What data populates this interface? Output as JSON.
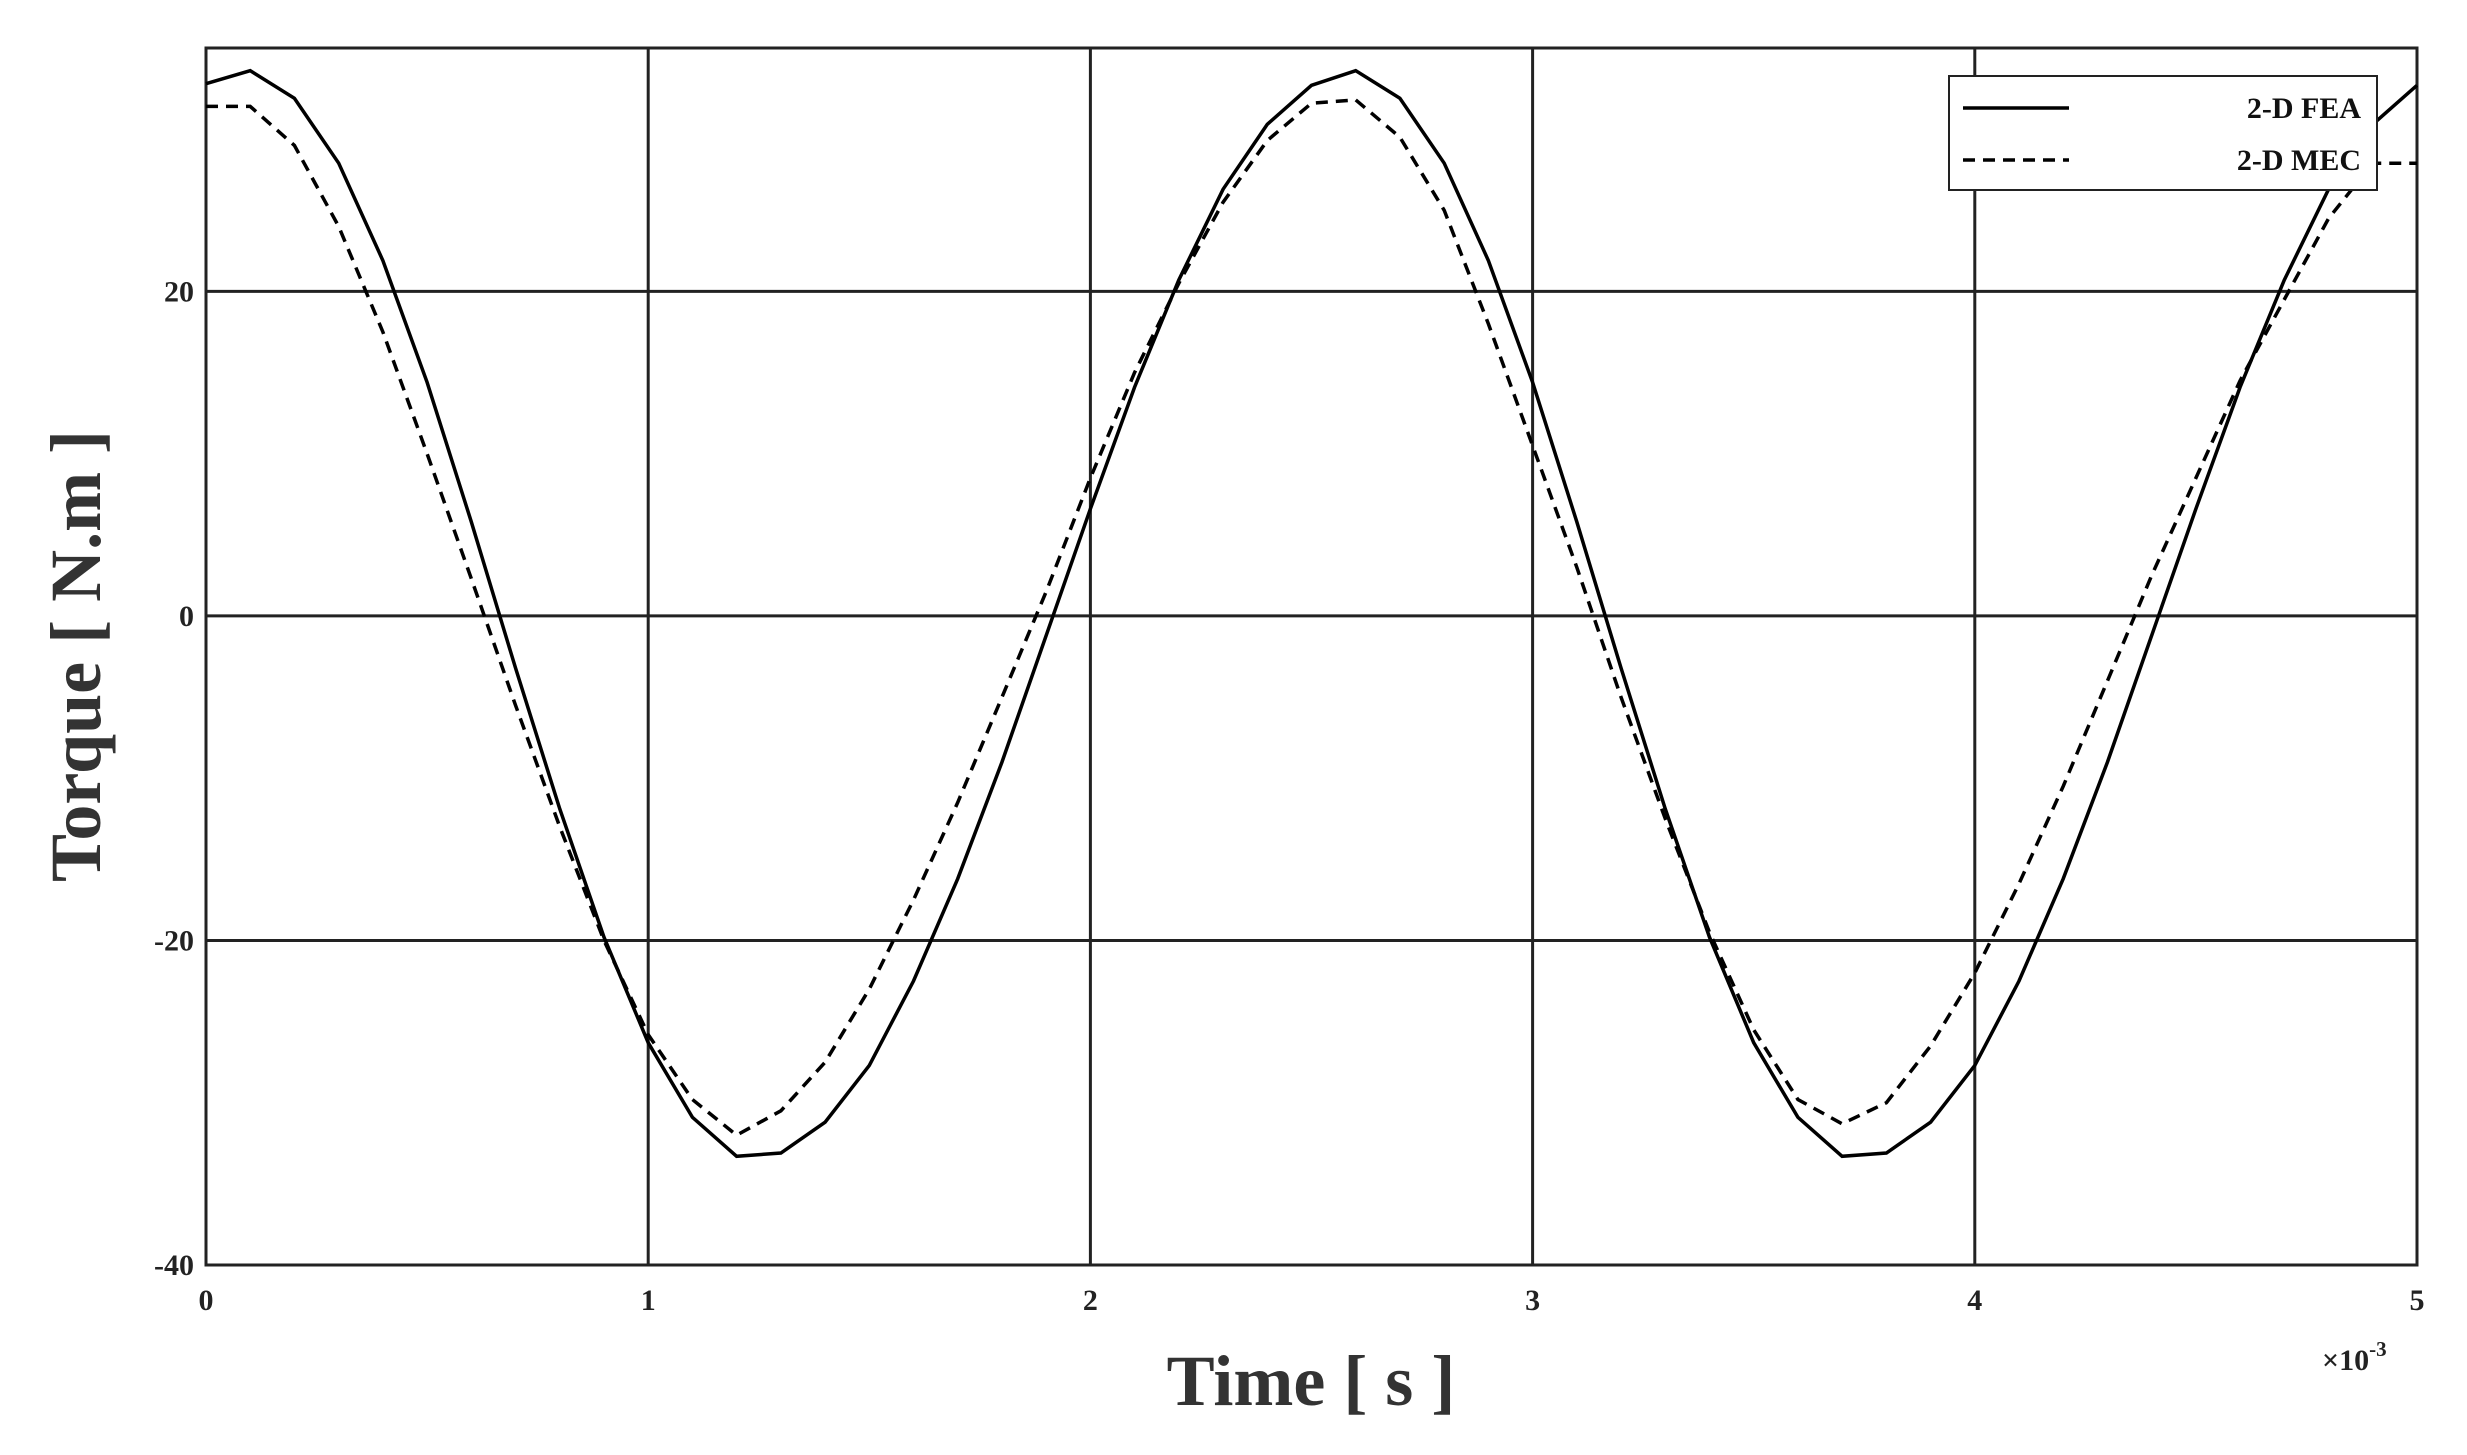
{
  "chart_data": {
    "type": "line",
    "x_label": "Time [ s ]",
    "y_label": "Torque [ N.m ]",
    "x_scale_label": "×10",
    "x_scale_exponent": "-3",
    "xlim": [
      0,
      5
    ],
    "xticks": [
      0,
      1,
      2,
      3,
      4,
      5
    ],
    "ylim": [
      -40,
      35
    ],
    "yticks": [
      -40,
      -20,
      0,
      20
    ],
    "grid": true,
    "legend": "top-right",
    "x": [
      0,
      0.1,
      0.2,
      0.3,
      0.4,
      0.5,
      0.6,
      0.7,
      0.8,
      0.9,
      1,
      1.1,
      1.2,
      1.3,
      1.4,
      1.5,
      1.6,
      1.7,
      1.8,
      1.9,
      2,
      2.1,
      2.2,
      2.3,
      2.4,
      2.5,
      2.6,
      2.7,
      2.8,
      2.9,
      3,
      3.1,
      3.2,
      3.3,
      3.4,
      3.5,
      3.6,
      3.7,
      3.8,
      3.9,
      4,
      4.1,
      4.2,
      4.3,
      4.4,
      4.5,
      4.6,
      4.7,
      4.8,
      4.9,
      5
    ],
    "series": [
      {
        "name": "2-D FEA",
        "color": "#000000",
        "dash": "solid",
        "values": [
          32.8,
          33.6,
          31.9,
          27.9,
          21.9,
          14.4,
          5.8,
          -3.2,
          -11.9,
          -19.8,
          -26.3,
          -30.9,
          -33.3,
          -33.1,
          -31.2,
          -27.7,
          -22.5,
          -16.2,
          -9.0,
          -1.2,
          6.6,
          14.1,
          20.7,
          26.3,
          30.3,
          32.7,
          33.6,
          31.9,
          27.9,
          21.9,
          14.4,
          5.8,
          -3.2,
          -11.9,
          -19.8,
          -26.3,
          -30.9,
          -33.3,
          -33.1,
          -31.2,
          -27.7,
          -22.5,
          -16.2,
          -9.0,
          -1.2,
          6.6,
          14.1,
          20.7,
          26.3,
          30.3,
          32.7
        ]
      },
      {
        "name": "2-D MEC",
        "color": "#000000",
        "dash": "dashed",
        "values": [
          31.4,
          31.4,
          29.0,
          24.0,
          17.5,
          10.0,
          2.3,
          -5.5,
          -13.0,
          -20.0,
          -25.8,
          -29.8,
          -32.0,
          -30.5,
          -27.5,
          -23.0,
          -17.5,
          -11.5,
          -5.0,
          1.5,
          8.5,
          15.0,
          20.5,
          25.5,
          29.3,
          31.6,
          31.8,
          29.5,
          25.0,
          18.0,
          10.5,
          3.0,
          -5.0,
          -12.5,
          -19.5,
          -25.5,
          -29.8,
          -31.3,
          -30.0,
          -26.5,
          -22.0,
          -16.5,
          -10.5,
          -4.0,
          2.5,
          8.5,
          14.5,
          19.5,
          24.5,
          27.9,
          27.9
        ]
      }
    ]
  }
}
